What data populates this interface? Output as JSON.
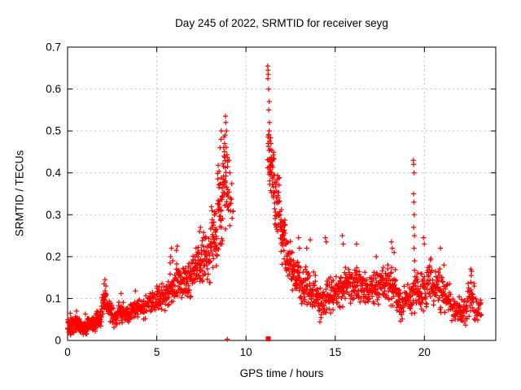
{
  "page": {
    "background": "#ffffff"
  },
  "chart_data": {
    "type": "scatter",
    "title": "Day 245 of 2022, SRMTID for receiver seyg",
    "xlabel": "GPS time / hours",
    "ylabel": "SRMTID / TECUs",
    "xlim": [
      0,
      24
    ],
    "ylim": [
      0,
      0.7
    ],
    "xticks": [
      0,
      5,
      10,
      15,
      20
    ],
    "ytick_labels": [
      "0",
      "0.1",
      "0.2",
      "0.3",
      "0.4",
      "0.5",
      "0.6",
      "0.7"
    ],
    "yticks": [
      0,
      0.1,
      0.2,
      0.3,
      0.4,
      0.5,
      0.6,
      0.7
    ],
    "grid": true,
    "legend": "none",
    "marker": "plus",
    "marker_color": "#ff0000",
    "axis_color": "#000000",
    "grid_color": "#bebebe",
    "background": "#ffffff",
    "data_gap_hours": [
      9.3,
      11.2
    ],
    "cloud_bands": [
      [
        0.0,
        0.35,
        0.01,
        0.055,
        42
      ],
      [
        0.35,
        0.7,
        0.015,
        0.06,
        45
      ],
      [
        0.7,
        1.1,
        0.01,
        0.05,
        45
      ],
      [
        1.1,
        1.6,
        0.02,
        0.06,
        42
      ],
      [
        1.6,
        1.9,
        0.03,
        0.08,
        30
      ],
      [
        1.9,
        2.25,
        0.05,
        0.125,
        32
      ],
      [
        2.25,
        2.5,
        0.04,
        0.1,
        22
      ],
      [
        2.5,
        2.85,
        0.03,
        0.08,
        26
      ],
      [
        2.85,
        3.15,
        0.04,
        0.105,
        26
      ],
      [
        3.15,
        3.55,
        0.04,
        0.09,
        28
      ],
      [
        3.55,
        4.0,
        0.05,
        0.1,
        34
      ],
      [
        4.0,
        4.5,
        0.05,
        0.11,
        36
      ],
      [
        4.5,
        5.0,
        0.06,
        0.12,
        36
      ],
      [
        5.0,
        5.5,
        0.07,
        0.14,
        38
      ],
      [
        5.5,
        6.0,
        0.08,
        0.17,
        40
      ],
      [
        6.0,
        6.5,
        0.095,
        0.19,
        44
      ],
      [
        6.5,
        7.0,
        0.1,
        0.2,
        44
      ],
      [
        7.0,
        7.5,
        0.115,
        0.235,
        46
      ],
      [
        7.5,
        8.0,
        0.125,
        0.26,
        46
      ],
      [
        8.0,
        8.4,
        0.15,
        0.33,
        44
      ],
      [
        8.4,
        8.7,
        0.2,
        0.45,
        40
      ],
      [
        8.7,
        9.0,
        0.25,
        0.52,
        34
      ],
      [
        9.0,
        9.3,
        0.24,
        0.38,
        12
      ],
      [
        11.2,
        11.4,
        0.38,
        0.52,
        14
      ],
      [
        11.3,
        11.6,
        0.33,
        0.47,
        36
      ],
      [
        11.6,
        11.9,
        0.25,
        0.4,
        36
      ],
      [
        11.9,
        12.2,
        0.18,
        0.33,
        36
      ],
      [
        12.2,
        12.6,
        0.13,
        0.25,
        36
      ],
      [
        12.6,
        13.0,
        0.1,
        0.205,
        38
      ],
      [
        13.0,
        13.5,
        0.08,
        0.185,
        42
      ],
      [
        13.5,
        14.0,
        0.06,
        0.165,
        42
      ],
      [
        14.0,
        14.5,
        0.04,
        0.145,
        40
      ],
      [
        14.5,
        15.0,
        0.06,
        0.16,
        42
      ],
      [
        15.0,
        15.5,
        0.07,
        0.175,
        42
      ],
      [
        15.5,
        16.0,
        0.08,
        0.185,
        42
      ],
      [
        16.0,
        16.5,
        0.07,
        0.18,
        40
      ],
      [
        16.5,
        17.0,
        0.08,
        0.165,
        40
      ],
      [
        17.0,
        17.5,
        0.08,
        0.175,
        40
      ],
      [
        17.5,
        18.0,
        0.085,
        0.185,
        40
      ],
      [
        18.0,
        18.45,
        0.07,
        0.19,
        40
      ],
      [
        18.45,
        18.95,
        0.04,
        0.13,
        38
      ],
      [
        18.95,
        19.35,
        0.05,
        0.15,
        32
      ],
      [
        19.35,
        19.55,
        0.06,
        0.18,
        16
      ],
      [
        19.55,
        19.95,
        0.06,
        0.18,
        34
      ],
      [
        19.95,
        20.5,
        0.07,
        0.2,
        42
      ],
      [
        20.5,
        21.0,
        0.06,
        0.18,
        40
      ],
      [
        21.0,
        21.5,
        0.05,
        0.15,
        38
      ],
      [
        21.5,
        22.0,
        0.04,
        0.115,
        36
      ],
      [
        22.0,
        22.4,
        0.03,
        0.1,
        30
      ],
      [
        22.4,
        22.8,
        0.05,
        0.15,
        30
      ],
      [
        22.8,
        23.2,
        0.04,
        0.11,
        24
      ]
    ],
    "outlier_points": [
      [
        0.15,
        0.065
      ],
      [
        0.5,
        0.07
      ],
      [
        1.0,
        0.063
      ],
      [
        2.05,
        0.135
      ],
      [
        2.1,
        0.145
      ],
      [
        2.15,
        0.13
      ],
      [
        3.0,
        0.112
      ],
      [
        3.8,
        0.118
      ],
      [
        5.75,
        0.185
      ],
      [
        5.78,
        0.2
      ],
      [
        5.82,
        0.22
      ],
      [
        5.9,
        0.19
      ],
      [
        6.1,
        0.215
      ],
      [
        6.15,
        0.225
      ],
      [
        7.4,
        0.26
      ],
      [
        7.45,
        0.27
      ],
      [
        8.55,
        0.46
      ],
      [
        8.6,
        0.48
      ],
      [
        8.62,
        0.5
      ],
      [
        8.75,
        0.46
      ],
      [
        8.78,
        0.44
      ],
      [
        8.8,
        0.47
      ],
      [
        8.83,
        0.49
      ],
      [
        8.85,
        0.535
      ],
      [
        8.87,
        0.52
      ],
      [
        8.9,
        0.5
      ],
      [
        9.05,
        0.43
      ],
      [
        9.1,
        0.4
      ],
      [
        9.12,
        0.34
      ],
      [
        11.22,
        0.655
      ],
      [
        11.24,
        0.645
      ],
      [
        11.25,
        0.635
      ],
      [
        11.23,
        0.625
      ],
      [
        11.27,
        0.6
      ],
      [
        11.3,
        0.57
      ],
      [
        11.28,
        0.55
      ],
      [
        11.32,
        0.52
      ],
      [
        11.3,
        0.5
      ],
      [
        11.26,
        0.49
      ],
      [
        12.95,
        0.245
      ],
      [
        13.0,
        0.22
      ],
      [
        13.4,
        0.22
      ],
      [
        13.6,
        0.24
      ],
      [
        14.45,
        0.245
      ],
      [
        14.5,
        0.235
      ],
      [
        15.4,
        0.25
      ],
      [
        15.45,
        0.23
      ],
      [
        16.2,
        0.23
      ],
      [
        17.3,
        0.2
      ],
      [
        18.15,
        0.235
      ],
      [
        18.2,
        0.22
      ],
      [
        18.3,
        0.21
      ],
      [
        19.38,
        0.43
      ],
      [
        19.4,
        0.42
      ],
      [
        19.42,
        0.4
      ],
      [
        19.39,
        0.35
      ],
      [
        19.41,
        0.33
      ],
      [
        19.43,
        0.3
      ],
      [
        19.4,
        0.27
      ],
      [
        19.44,
        0.25
      ],
      [
        19.42,
        0.22
      ],
      [
        19.45,
        0.19
      ],
      [
        19.95,
        0.245
      ],
      [
        20.0,
        0.23
      ],
      [
        20.9,
        0.22
      ],
      [
        21.1,
        0.18
      ],
      [
        22.6,
        0.17
      ],
      [
        22.65,
        0.165
      ],
      [
        22.62,
        0.155
      ]
    ],
    "axis_markers": {
      "plus_at": [
        8.95,
        0.003
      ],
      "square_at": [
        11.25,
        0.004
      ]
    }
  }
}
